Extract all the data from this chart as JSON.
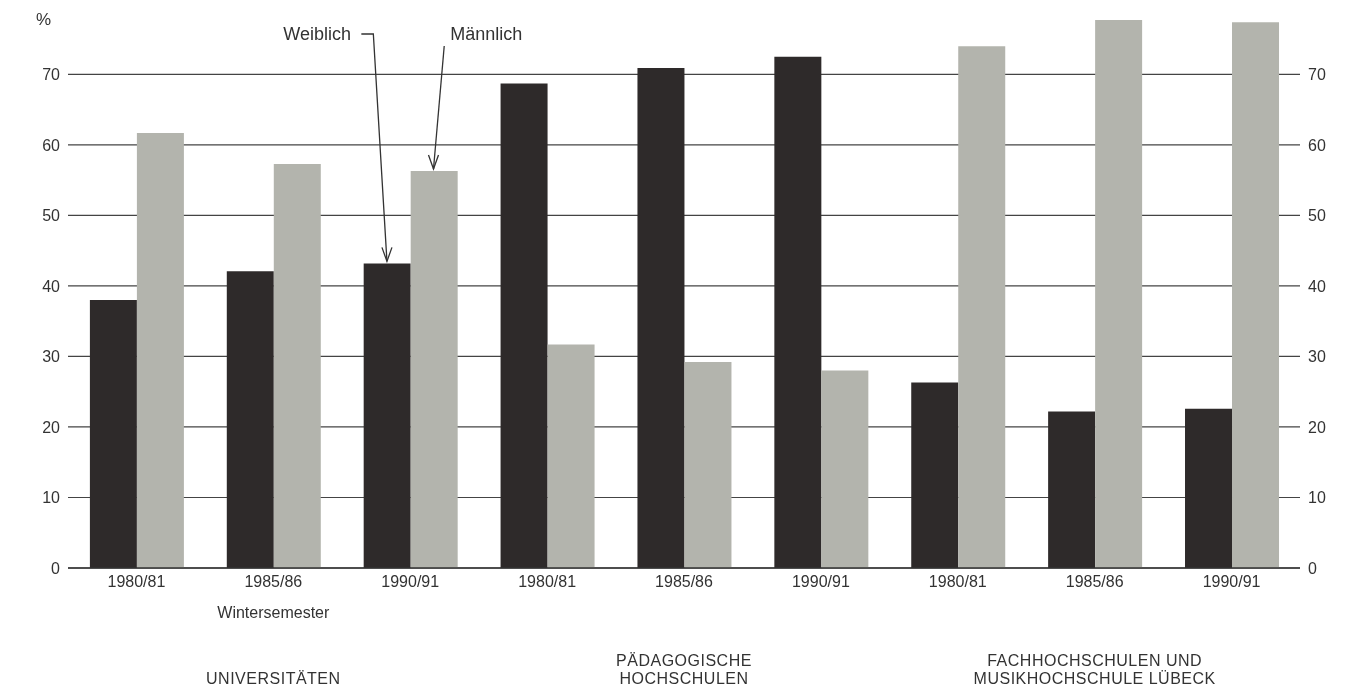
{
  "chart_data": {
    "type": "bar",
    "ylabel": "%",
    "categories": [
      "1980/81",
      "1985/86",
      "1990/91",
      "1980/81",
      "1985/86",
      "1990/91",
      "1980/81",
      "1985/86",
      "1990/91"
    ],
    "series": [
      {
        "name": "Weiblich",
        "color": "#2e2a2a",
        "values": [
          38.0,
          42.1,
          43.2,
          68.7,
          70.9,
          72.5,
          26.3,
          22.2,
          22.6
        ]
      },
      {
        "name": "Männlich",
        "color": "#b3b4ad",
        "values": [
          61.7,
          57.3,
          56.3,
          31.7,
          29.2,
          28.0,
          74.0,
          77.7,
          77.4
        ]
      }
    ],
    "ylim": [
      0,
      78
    ],
    "yticks": [
      0,
      10,
      20,
      30,
      40,
      50,
      60,
      70
    ],
    "y2lim": [
      0,
      78
    ],
    "y2ticks": [
      0,
      10,
      20,
      30,
      40,
      50,
      60,
      70
    ],
    "grid": "y",
    "annotations": [
      "Wintersemester",
      "UNIVERSITÄTEN",
      "PÄDAGOGISCHE HOCHSCHULEN",
      "FACHHOCHSCHULEN UND MUSIKHOCHSCHULE LÜBECK"
    ]
  }
}
